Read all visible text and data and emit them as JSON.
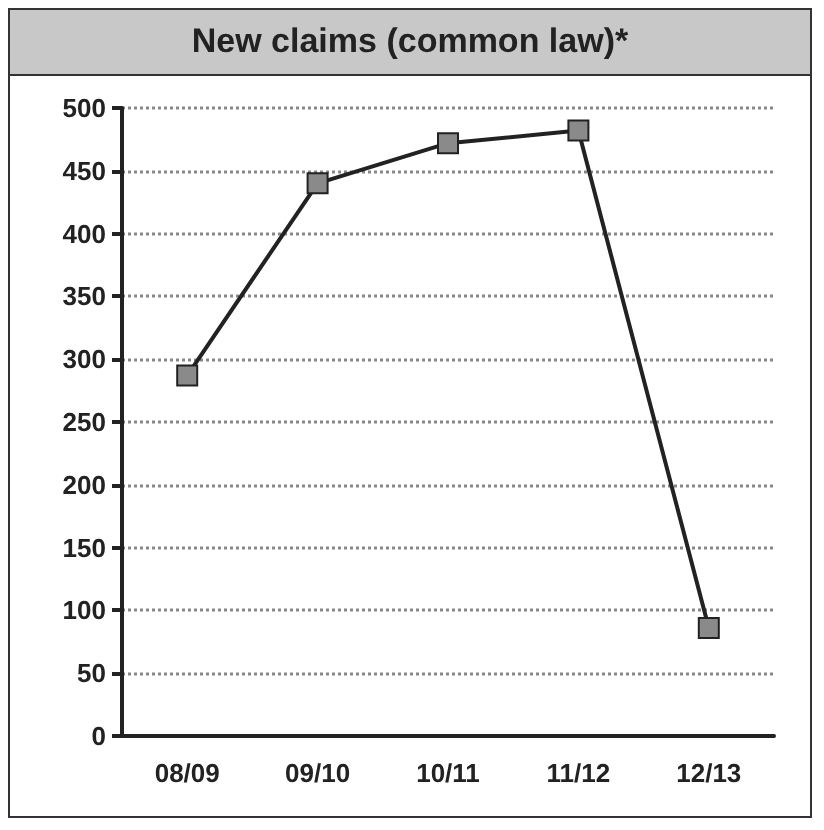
{
  "chart_data": {
    "type": "line",
    "title": "New claims (common law)*",
    "categories": [
      "08/09",
      "09/10",
      "10/11",
      "11/12",
      "12/13"
    ],
    "series": [
      {
        "color": "#222222",
        "values": [
          287,
          440,
          472,
          482,
          86
        ]
      }
    ],
    "ylim": [
      0,
      500
    ],
    "yticks": [
      0,
      50,
      100,
      150,
      200,
      250,
      300,
      350,
      400,
      450,
      500
    ],
    "grid": "y",
    "marker": "square",
    "line_style": "solid"
  }
}
